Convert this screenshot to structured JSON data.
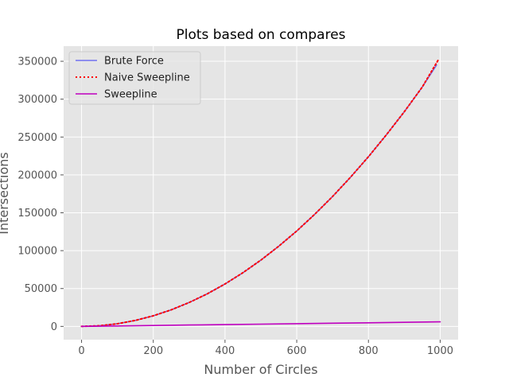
{
  "chart_data": {
    "type": "line",
    "title": "Plots based on compares",
    "xlabel": "Number of Circles",
    "ylabel": "Intersections",
    "xlim": [
      -50,
      1050
    ],
    "ylim": [
      -17500,
      370000
    ],
    "x_ticks": [
      0,
      200,
      400,
      600,
      800,
      1000
    ],
    "y_ticks": [
      0,
      50000,
      100000,
      150000,
      200000,
      250000,
      300000,
      350000
    ],
    "grid": true,
    "legend_position": "top-left",
    "colors": {
      "background": "#e5e5e5",
      "grid": "#ffffff",
      "text": "#555555"
    },
    "series": [
      {
        "name": "Brute Force",
        "style": "solid",
        "color": "#7070f0",
        "x": [
          0,
          50,
          100,
          150,
          200,
          250,
          300,
          350,
          400,
          450,
          500,
          550,
          600,
          650,
          700,
          750,
          800,
          850,
          900,
          950,
          990
        ],
        "y": [
          0,
          900,
          3500,
          7900,
          14000,
          21900,
          31500,
          42900,
          56000,
          70900,
          87500,
          105900,
          126000,
          147900,
          171500,
          196900,
          224000,
          252900,
          283500,
          315900,
          345000
        ]
      },
      {
        "name": "Naive Sweepline",
        "style": "dotted",
        "color": "#ff0000",
        "x": [
          0,
          50,
          100,
          150,
          200,
          250,
          300,
          350,
          400,
          450,
          500,
          550,
          600,
          650,
          700,
          750,
          800,
          850,
          900,
          950,
          995
        ],
        "y": [
          0,
          900,
          3500,
          7900,
          14000,
          21900,
          31500,
          42900,
          56000,
          70900,
          87500,
          105900,
          126000,
          147900,
          171500,
          196900,
          224000,
          252900,
          283500,
          315900,
          352000
        ]
      },
      {
        "name": "Sweepline",
        "style": "solid",
        "color": "#bf00bf",
        "x": [
          0,
          100,
          200,
          300,
          400,
          500,
          600,
          700,
          800,
          900,
          1000
        ],
        "y": [
          0,
          600,
          1200,
          1800,
          2400,
          3000,
          3600,
          4200,
          4800,
          5400,
          6000
        ]
      }
    ]
  }
}
